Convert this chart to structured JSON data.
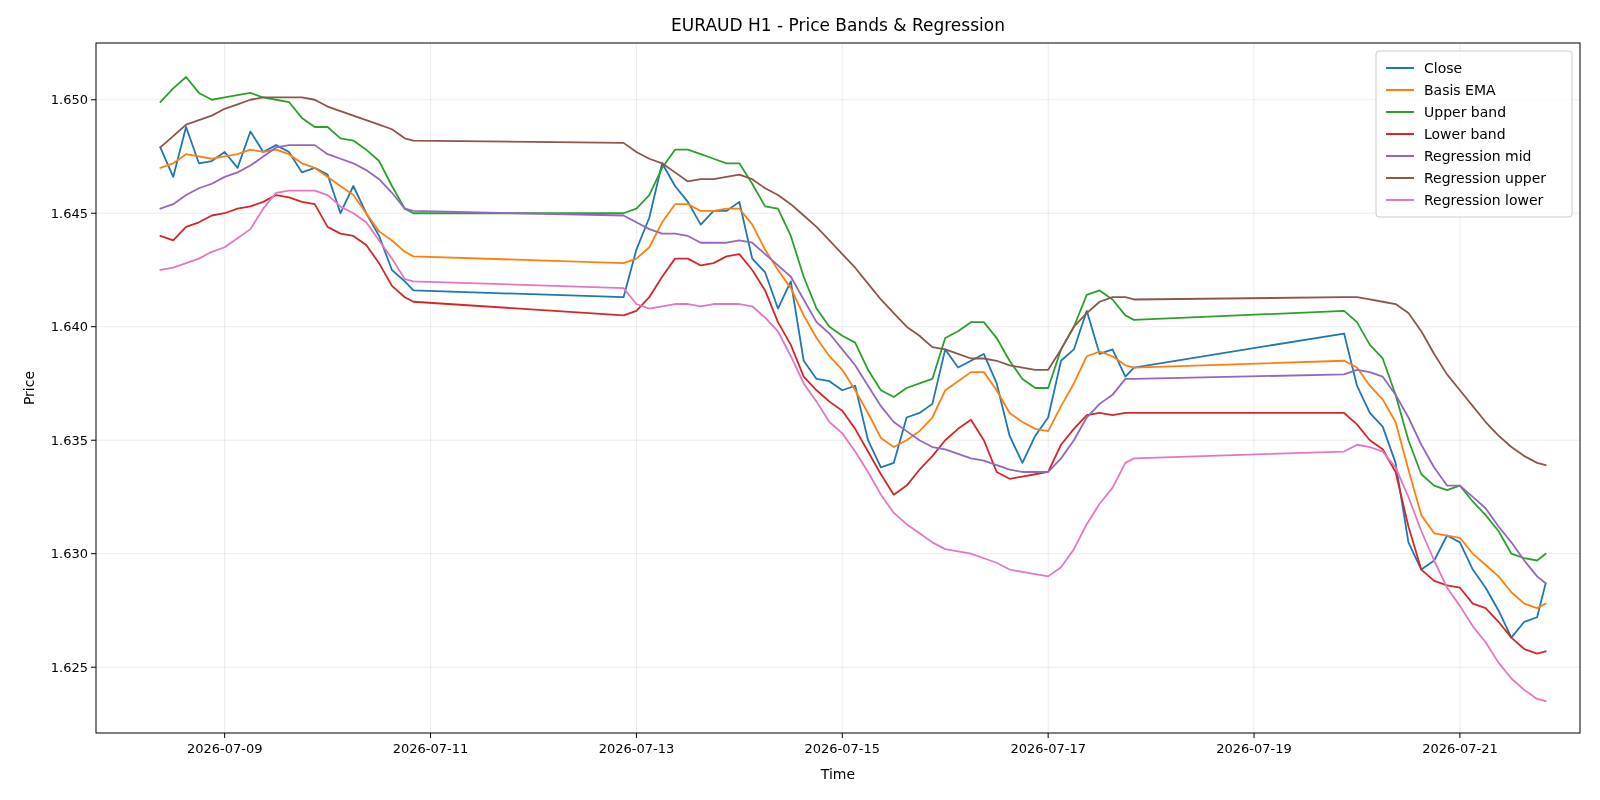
{
  "chart_data": {
    "type": "line",
    "title": "EURAUD H1 - Price Bands & Regression",
    "xlabel": "Time",
    "ylabel": "Price",
    "x": [
      "2026-07-08T09:00",
      "2026-07-08T12:00",
      "2026-07-08T15:00",
      "2026-07-08T18:00",
      "2026-07-08T21:00",
      "2026-07-09T00:00",
      "2026-07-09T03:00",
      "2026-07-09T06:00",
      "2026-07-09T09:00",
      "2026-07-09T12:00",
      "2026-07-09T15:00",
      "2026-07-09T18:00",
      "2026-07-09T21:00",
      "2026-07-10T00:00",
      "2026-07-10T03:00",
      "2026-07-10T06:00",
      "2026-07-10T09:00",
      "2026-07-10T12:00",
      "2026-07-10T15:00",
      "2026-07-10T18:00",
      "2026-07-10T20:00",
      "2026-07-12T21:00",
      "2026-07-13T00:00",
      "2026-07-13T03:00",
      "2026-07-13T06:00",
      "2026-07-13T09:00",
      "2026-07-13T12:00",
      "2026-07-13T15:00",
      "2026-07-13T18:00",
      "2026-07-13T21:00",
      "2026-07-14T00:00",
      "2026-07-14T03:00",
      "2026-07-14T06:00",
      "2026-07-14T09:00",
      "2026-07-14T12:00",
      "2026-07-14T15:00",
      "2026-07-14T18:00",
      "2026-07-14T21:00",
      "2026-07-15T00:00",
      "2026-07-15T03:00",
      "2026-07-15T06:00",
      "2026-07-15T09:00",
      "2026-07-15T12:00",
      "2026-07-15T15:00",
      "2026-07-15T18:00",
      "2026-07-15T21:00",
      "2026-07-16T00:00",
      "2026-07-16T03:00",
      "2026-07-16T06:00",
      "2026-07-16T09:00",
      "2026-07-16T12:00",
      "2026-07-16T15:00",
      "2026-07-16T18:00",
      "2026-07-16T21:00",
      "2026-07-17T00:00",
      "2026-07-17T03:00",
      "2026-07-17T06:00",
      "2026-07-17T09:00",
      "2026-07-17T12:00",
      "2026-07-17T15:00",
      "2026-07-17T18:00",
      "2026-07-17T20:00",
      "2026-07-19T21:00",
      "2026-07-20T00:00",
      "2026-07-20T03:00",
      "2026-07-20T06:00",
      "2026-07-20T09:00",
      "2026-07-20T12:00",
      "2026-07-20T15:00",
      "2026-07-20T18:00",
      "2026-07-20T21:00",
      "2026-07-21T00:00",
      "2026-07-21T03:00",
      "2026-07-21T06:00",
      "2026-07-21T09:00",
      "2026-07-21T12:00",
      "2026-07-21T15:00",
      "2026-07-21T18:00",
      "2026-07-21T20:00"
    ],
    "series": [
      {
        "name": "Close",
        "color": "#1f77b4",
        "values": [
          1.6479,
          1.6466,
          1.6488,
          1.6472,
          1.6473,
          1.6477,
          1.647,
          1.6486,
          1.6477,
          1.648,
          1.6477,
          1.6468,
          1.647,
          1.6467,
          1.645,
          1.6462,
          1.645,
          1.644,
          1.6425,
          1.642,
          1.6416,
          1.6413,
          1.6434,
          1.6448,
          1.6472,
          1.6462,
          1.6455,
          1.6445,
          1.6451,
          1.6451,
          1.6455,
          1.643,
          1.6424,
          1.6408,
          1.642,
          1.6385,
          1.6377,
          1.6376,
          1.6372,
          1.6374,
          1.635,
          1.6338,
          1.634,
          1.636,
          1.6362,
          1.6366,
          1.639,
          1.6382,
          1.6385,
          1.6388,
          1.6375,
          1.6352,
          1.634,
          1.6352,
          1.636,
          1.6385,
          1.639,
          1.6407,
          1.6388,
          1.639,
          1.6378,
          1.6382,
          1.6397,
          1.6374,
          1.6362,
          1.6356,
          1.634,
          1.6305,
          1.6293,
          1.6297,
          1.6308,
          1.6305,
          1.6293,
          1.6285,
          1.6275,
          1.6263,
          1.627,
          1.6272,
          1.6287
        ]
      },
      {
        "name": "Basis EMA",
        "color": "#ff7f0e",
        "values": [
          1.647,
          1.6472,
          1.6476,
          1.6475,
          1.6474,
          1.6475,
          1.6476,
          1.6478,
          1.6477,
          1.6478,
          1.6476,
          1.6472,
          1.647,
          1.6466,
          1.6462,
          1.6458,
          1.645,
          1.6442,
          1.6438,
          1.6433,
          1.6431,
          1.6428,
          1.643,
          1.6435,
          1.6446,
          1.6454,
          1.6454,
          1.6451,
          1.6451,
          1.6452,
          1.6452,
          1.6445,
          1.6434,
          1.6425,
          1.6417,
          1.6405,
          1.6395,
          1.6387,
          1.6381,
          1.6372,
          1.6362,
          1.6351,
          1.6347,
          1.635,
          1.6354,
          1.636,
          1.6372,
          1.6376,
          1.638,
          1.638,
          1.6372,
          1.6362,
          1.6358,
          1.6355,
          1.6354,
          1.6365,
          1.6375,
          1.6387,
          1.6389,
          1.6387,
          1.6383,
          1.6382,
          1.6385,
          1.6382,
          1.6374,
          1.6368,
          1.6358,
          1.6337,
          1.6317,
          1.6309,
          1.6308,
          1.6307,
          1.63,
          1.6295,
          1.629,
          1.6283,
          1.6278,
          1.6276,
          1.6278
        ]
      },
      {
        "name": "Upper band",
        "color": "#2ca02c",
        "values": [
          1.6499,
          1.6505,
          1.651,
          1.6503,
          1.65,
          1.6501,
          1.6502,
          1.6503,
          1.6501,
          1.65,
          1.6499,
          1.6492,
          1.6488,
          1.6488,
          1.6483,
          1.6482,
          1.6478,
          1.6473,
          1.6462,
          1.6452,
          1.645,
          1.645,
          1.6452,
          1.6458,
          1.647,
          1.6478,
          1.6478,
          1.6476,
          1.6474,
          1.6472,
          1.6472,
          1.6463,
          1.6453,
          1.6452,
          1.644,
          1.6422,
          1.6408,
          1.64,
          1.6396,
          1.6393,
          1.6381,
          1.6372,
          1.6369,
          1.6373,
          1.6375,
          1.6377,
          1.6395,
          1.6398,
          1.6402,
          1.6402,
          1.6395,
          1.6385,
          1.6377,
          1.6373,
          1.6373,
          1.639,
          1.64,
          1.6414,
          1.6416,
          1.6412,
          1.6405,
          1.6403,
          1.6407,
          1.6402,
          1.6392,
          1.6386,
          1.637,
          1.635,
          1.6335,
          1.633,
          1.6328,
          1.633,
          1.6323,
          1.6317,
          1.631,
          1.63,
          1.6298,
          1.6297,
          1.63
        ]
      },
      {
        "name": "Lower band",
        "color": "#d62728",
        "values": [
          1.644,
          1.6438,
          1.6444,
          1.6446,
          1.6449,
          1.645,
          1.6452,
          1.6453,
          1.6455,
          1.6458,
          1.6457,
          1.6455,
          1.6454,
          1.6444,
          1.6441,
          1.644,
          1.6436,
          1.6428,
          1.6418,
          1.6413,
          1.6411,
          1.6405,
          1.6407,
          1.6413,
          1.6422,
          1.643,
          1.643,
          1.6427,
          1.6428,
          1.6431,
          1.6432,
          1.6425,
          1.6416,
          1.6402,
          1.6392,
          1.6378,
          1.6372,
          1.6367,
          1.6363,
          1.6355,
          1.6345,
          1.6335,
          1.6326,
          1.633,
          1.6337,
          1.6343,
          1.635,
          1.6355,
          1.6359,
          1.635,
          1.6336,
          1.6333,
          1.6334,
          1.6335,
          1.6336,
          1.6348,
          1.6355,
          1.6361,
          1.6362,
          1.6361,
          1.6362,
          1.6362,
          1.6362,
          1.6357,
          1.635,
          1.6346,
          1.6336,
          1.6312,
          1.6293,
          1.6288,
          1.6286,
          1.6285,
          1.6278,
          1.6276,
          1.627,
          1.6263,
          1.6258,
          1.6256,
          1.6257
        ]
      },
      {
        "name": "Regression mid",
        "color": "#9467bd",
        "values": [
          1.6452,
          1.6454,
          1.6458,
          1.6461,
          1.6463,
          1.6466,
          1.6468,
          1.6471,
          1.6475,
          1.6479,
          1.648,
          1.648,
          1.648,
          1.6476,
          1.6474,
          1.6472,
          1.6469,
          1.6465,
          1.6459,
          1.6452,
          1.6451,
          1.6449,
          1.6446,
          1.6443,
          1.6441,
          1.6441,
          1.644,
          1.6437,
          1.6437,
          1.6437,
          1.6438,
          1.6437,
          1.6432,
          1.6427,
          1.6422,
          1.6412,
          1.6402,
          1.6397,
          1.639,
          1.6383,
          1.6374,
          1.6365,
          1.6358,
          1.6354,
          1.635,
          1.6347,
          1.6346,
          1.6344,
          1.6342,
          1.6341,
          1.6339,
          1.6337,
          1.6336,
          1.6336,
          1.6336,
          1.6342,
          1.635,
          1.636,
          1.6366,
          1.637,
          1.6377,
          1.6377,
          1.6379,
          1.6381,
          1.638,
          1.6378,
          1.637,
          1.636,
          1.6348,
          1.6338,
          1.633,
          1.633,
          1.6325,
          1.632,
          1.6312,
          1.6305,
          1.6297,
          1.629,
          1.6287
        ]
      },
      {
        "name": "Regression upper",
        "color": "#8c564b",
        "values": [
          1.6479,
          1.6484,
          1.6489,
          1.6491,
          1.6493,
          1.6496,
          1.6498,
          1.65,
          1.6501,
          1.6501,
          1.6501,
          1.6501,
          1.65,
          1.6497,
          1.6495,
          1.6493,
          1.6491,
          1.6489,
          1.6487,
          1.6483,
          1.6482,
          1.6481,
          1.6477,
          1.6474,
          1.6472,
          1.6468,
          1.6464,
          1.6465,
          1.6465,
          1.6466,
          1.6467,
          1.6465,
          1.6461,
          1.6458,
          1.6454,
          1.6449,
          1.6444,
          1.6438,
          1.6432,
          1.6426,
          1.6419,
          1.6412,
          1.6406,
          1.64,
          1.6396,
          1.6391,
          1.639,
          1.6388,
          1.6386,
          1.6386,
          1.6385,
          1.6383,
          1.6382,
          1.6381,
          1.6381,
          1.639,
          1.64,
          1.6406,
          1.6411,
          1.6413,
          1.6413,
          1.6412,
          1.6413,
          1.6413,
          1.6412,
          1.6411,
          1.641,
          1.6406,
          1.6398,
          1.6388,
          1.6379,
          1.6372,
          1.6365,
          1.6358,
          1.6352,
          1.6347,
          1.6343,
          1.634,
          1.6339
        ]
      },
      {
        "name": "Regression lower",
        "color": "#e377c2",
        "values": [
          1.6425,
          1.6426,
          1.6428,
          1.643,
          1.6433,
          1.6435,
          1.6439,
          1.6443,
          1.6452,
          1.6459,
          1.646,
          1.646,
          1.646,
          1.6458,
          1.6453,
          1.645,
          1.6446,
          1.6438,
          1.643,
          1.6421,
          1.642,
          1.6417,
          1.641,
          1.6408,
          1.6409,
          1.641,
          1.641,
          1.6409,
          1.641,
          1.641,
          1.641,
          1.6409,
          1.6404,
          1.6398,
          1.6387,
          1.6375,
          1.6367,
          1.6358,
          1.6353,
          1.6345,
          1.6336,
          1.6326,
          1.6318,
          1.6313,
          1.6309,
          1.6305,
          1.6302,
          1.6301,
          1.63,
          1.6298,
          1.6296,
          1.6293,
          1.6292,
          1.6291,
          1.629,
          1.6294,
          1.6302,
          1.6313,
          1.6322,
          1.6329,
          1.634,
          1.6342,
          1.6345,
          1.6348,
          1.6347,
          1.6345,
          1.6338,
          1.6325,
          1.631,
          1.6297,
          1.6285,
          1.6277,
          1.6268,
          1.6261,
          1.6252,
          1.6245,
          1.624,
          1.6236,
          1.6235
        ]
      }
    ],
    "xlim": [
      "2026-07-07T18:00",
      "2026-07-22T04:00"
    ],
    "xticks": [
      "2026-07-09",
      "2026-07-11",
      "2026-07-13",
      "2026-07-15",
      "2026-07-17",
      "2026-07-19",
      "2026-07-21"
    ],
    "ylim": [
      1.6221,
      1.6525
    ],
    "yticks": [
      1.625,
      {
        "value": 1.63,
        "label": "1.630"
      },
      1.635,
      {
        "value": 1.64,
        "label": "1.640"
      },
      1.645,
      {
        "value": 1.65,
        "label": "1.650"
      }
    ],
    "grid": true,
    "legend": "top right",
    "marker": "none",
    "line_style": "solid"
  }
}
